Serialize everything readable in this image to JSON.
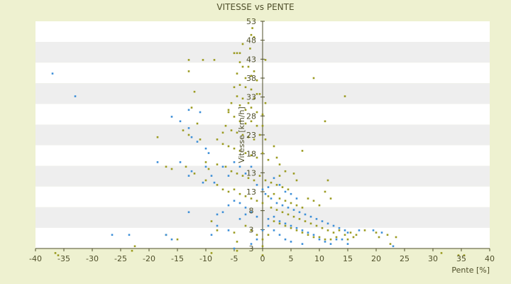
{
  "chart_data": {
    "type": "scatter",
    "title": "VITESSE vs PENTE",
    "xlabel": "Pente [%]",
    "ylabel": "Vitesse [km/h]",
    "xlim": [
      -40,
      40
    ],
    "ylim": [
      3,
      53
    ],
    "x_ticks": [
      "-40",
      "-35",
      "-30",
      "-25",
      "-20",
      "-15",
      "-10",
      "-5",
      "0",
      "5",
      "10",
      "15",
      "20",
      "25",
      "30",
      "35",
      "40"
    ],
    "y_ticks": [
      "3",
      "3",
      "8",
      "13",
      "13",
      "18",
      "23",
      "28",
      "33",
      "38",
      "43",
      "48",
      "53"
    ],
    "grid": "horizontal banded",
    "colors": {
      "background": "#eef1d0",
      "plot_band_light": "#ffffff",
      "plot_band_dark": "#eeeeee",
      "series_olive": "#9b9b20",
      "series_blue": "#3d8fd8",
      "axis": "#4f4f2a"
    },
    "series": [
      {
        "color": "#9b9b20",
        "points": [
          [
            -2,
            50
          ],
          [
            -1.8,
            51.5
          ],
          [
            -1.5,
            49.5
          ],
          [
            -2.2,
            47
          ],
          [
            -3.5,
            48
          ],
          [
            -4,
            46
          ],
          [
            -5,
            46
          ],
          [
            -4.5,
            46
          ],
          [
            -13,
            44.5
          ],
          [
            -10.5,
            44.5
          ],
          [
            -8.5,
            44.5
          ],
          [
            -13,
            42
          ],
          [
            -3.5,
            43
          ],
          [
            -4,
            44
          ],
          [
            -2.5,
            43
          ],
          [
            -1.5,
            42
          ],
          [
            0.5,
            44.5
          ],
          [
            -4.5,
            41.5
          ],
          [
            -3,
            40.5
          ],
          [
            -2,
            41
          ],
          [
            -1,
            40
          ],
          [
            -4,
            39
          ],
          [
            -5,
            38.5
          ],
          [
            -3,
            38.5
          ],
          [
            -2,
            38
          ],
          [
            -1,
            37
          ],
          [
            -4.5,
            36.5
          ],
          [
            -3.5,
            36
          ],
          [
            -2.5,
            35
          ],
          [
            -1.5,
            36
          ],
          [
            -0.5,
            37
          ],
          [
            0.5,
            35
          ],
          [
            -5.5,
            35
          ],
          [
            -4,
            34.5
          ],
          [
            -3,
            33.5
          ],
          [
            -2,
            34
          ],
          [
            -1,
            33
          ],
          [
            0,
            32.5
          ],
          [
            -6,
            33
          ],
          [
            -5,
            32
          ],
          [
            -4,
            31
          ],
          [
            -3,
            30.5
          ],
          [
            -2,
            31
          ],
          [
            -1,
            30
          ],
          [
            0,
            30
          ],
          [
            -6.5,
            30
          ],
          [
            -5.5,
            29
          ],
          [
            -4.5,
            28.5
          ],
          [
            -3.5,
            28
          ],
          [
            -2.5,
            27.5
          ],
          [
            -1.5,
            27
          ],
          [
            -0.5,
            28
          ],
          [
            0.5,
            27
          ],
          [
            -18.5,
            27.5
          ],
          [
            -13,
            28
          ],
          [
            -11,
            27
          ],
          [
            -8,
            27
          ],
          [
            -7,
            26
          ],
          [
            -6,
            25.5
          ],
          [
            -5,
            25
          ],
          [
            -4,
            24.5
          ],
          [
            -3,
            24
          ],
          [
            -2,
            23.5
          ],
          [
            -1,
            23
          ],
          [
            0,
            24
          ],
          [
            1,
            22.5
          ],
          [
            2,
            25.5
          ],
          [
            2.5,
            23
          ],
          [
            3,
            21.5
          ],
          [
            7,
            24.5
          ],
          [
            -17,
            21
          ],
          [
            -16,
            20.5
          ],
          [
            -13.5,
            21
          ],
          [
            -12,
            19.5
          ],
          [
            -10,
            22
          ],
          [
            -9.5,
            20.5
          ],
          [
            -8,
            21.5
          ],
          [
            -6.5,
            21
          ],
          [
            -5.5,
            20
          ],
          [
            -4.5,
            19.5
          ],
          [
            -3.5,
            19
          ],
          [
            -2.5,
            18.5
          ],
          [
            -1.5,
            18
          ],
          [
            -0.5,
            19
          ],
          [
            0.5,
            18
          ],
          [
            1.5,
            17.5
          ],
          [
            2.5,
            17
          ],
          [
            3.5,
            16.5
          ],
          [
            4.5,
            16
          ],
          [
            5.5,
            19.5
          ],
          [
            4,
            20
          ],
          [
            6,
            18
          ],
          [
            3,
            19
          ],
          [
            -10,
            18
          ],
          [
            -8,
            17
          ],
          [
            -7,
            16
          ],
          [
            -6,
            15.5
          ],
          [
            -5,
            16
          ],
          [
            -4,
            15
          ],
          [
            -3,
            14.5
          ],
          [
            -2,
            14
          ],
          [
            -1,
            13.5
          ],
          [
            0,
            13
          ],
          [
            1,
            14.5
          ],
          [
            2,
            15
          ],
          [
            3,
            14
          ],
          [
            4,
            13.5
          ],
          [
            5,
            13
          ],
          [
            6,
            12.5
          ],
          [
            7,
            12
          ],
          [
            8,
            14
          ],
          [
            9,
            13.5
          ],
          [
            10,
            12.5
          ],
          [
            11,
            15.5
          ],
          [
            12,
            14
          ],
          [
            11.5,
            18
          ],
          [
            1.5,
            12
          ],
          [
            2.5,
            11.5
          ],
          [
            3.5,
            11
          ],
          [
            4.5,
            10.5
          ],
          [
            5.5,
            10
          ],
          [
            6.5,
            9.5
          ],
          [
            7.5,
            9
          ],
          [
            8.5,
            8.5
          ],
          [
            9.5,
            8
          ],
          [
            10.5,
            7.5
          ],
          [
            11.5,
            7
          ],
          [
            12.5,
            6.5
          ],
          [
            13.5,
            7
          ],
          [
            14.5,
            6
          ],
          [
            15.5,
            6.5
          ],
          [
            16.5,
            6
          ],
          [
            2,
            9
          ],
          [
            3,
            8.5
          ],
          [
            4,
            8
          ],
          [
            5,
            7.5
          ],
          [
            6,
            7
          ],
          [
            7,
            6.5
          ],
          [
            8,
            6
          ],
          [
            9,
            5.5
          ],
          [
            10,
            5.5
          ],
          [
            11,
            5
          ],
          [
            12,
            5
          ],
          [
            13,
            5.5
          ],
          [
            15,
            5
          ],
          [
            16,
            5.5
          ],
          [
            18,
            7
          ],
          [
            20,
            6.5
          ],
          [
            20.5,
            5.5
          ],
          [
            22,
            6
          ],
          [
            23.5,
            5.5
          ],
          [
            22.5,
            4
          ],
          [
            -3,
            8
          ],
          [
            -2,
            7
          ],
          [
            -1,
            6
          ],
          [
            0,
            5
          ],
          [
            1,
            6
          ],
          [
            -4.5,
            4.5
          ],
          [
            -5,
            6.5
          ],
          [
            -9,
            9
          ],
          [
            -8,
            7
          ],
          [
            -15,
            5
          ],
          [
            -17,
            6
          ],
          [
            -22.5,
            3.5
          ],
          [
            -23,
            2.5
          ],
          [
            -36.5,
            2
          ],
          [
            -36,
            1.5
          ],
          [
            -9,
            2
          ],
          [
            -4.5,
            2.5
          ],
          [
            0,
            3.5
          ],
          [
            0,
            1.5
          ],
          [
            31.5,
            2
          ],
          [
            34.5,
            1.5
          ],
          [
            35.5,
            1.5
          ],
          [
            9,
            40.5
          ],
          [
            14.5,
            36.5
          ],
          [
            11,
            31
          ],
          [
            -12,
            37.5
          ],
          [
            -12.5,
            34
          ],
          [
            -14,
            29
          ],
          [
            -11.5,
            30.5
          ],
          [
            -6,
            33.5
          ],
          [
            -7,
            28.5
          ]
        ]
      },
      {
        "color": "#3d8fd8",
        "points": [
          [
            -37,
            41.5
          ],
          [
            -33,
            36.5
          ],
          [
            -16,
            32
          ],
          [
            -14.5,
            31
          ],
          [
            -13,
            33.5
          ],
          [
            -11,
            33
          ],
          [
            -13,
            29.5
          ],
          [
            -12.5,
            27.5
          ],
          [
            -11.5,
            26.5
          ],
          [
            -10,
            25
          ],
          [
            -9.5,
            24
          ],
          [
            -18.5,
            22
          ],
          [
            -14.5,
            22
          ],
          [
            -12.5,
            20
          ],
          [
            -13,
            19
          ],
          [
            -10,
            21
          ],
          [
            -9,
            19
          ],
          [
            -10.5,
            17.5
          ],
          [
            -8.5,
            17.5
          ],
          [
            -7,
            21
          ],
          [
            -6,
            19
          ],
          [
            -5,
            22
          ],
          [
            -4,
            21
          ],
          [
            -3,
            19.5
          ],
          [
            -2,
            21
          ],
          [
            -1,
            17
          ],
          [
            0,
            16
          ],
          [
            1,
            16.5
          ],
          [
            2,
            18.5
          ],
          [
            3,
            17
          ],
          [
            4,
            15.5
          ],
          [
            5,
            15
          ],
          [
            6,
            14
          ],
          [
            0.5,
            15
          ],
          [
            1.5,
            14
          ],
          [
            2.5,
            13
          ],
          [
            3.5,
            12.5
          ],
          [
            4.5,
            12
          ],
          [
            5.5,
            11.5
          ],
          [
            6.5,
            11
          ],
          [
            7.5,
            10.5
          ],
          [
            8.5,
            10
          ],
          [
            9.5,
            9.5
          ],
          [
            10.5,
            9
          ],
          [
            11.5,
            8.5
          ],
          [
            12.5,
            8
          ],
          [
            13.5,
            7.5
          ],
          [
            14.5,
            7
          ],
          [
            15,
            6.5
          ],
          [
            17,
            7
          ],
          [
            19.5,
            7
          ],
          [
            21,
            6.5
          ],
          [
            23,
            3.5
          ],
          [
            1,
            9.5
          ],
          [
            2,
            10
          ],
          [
            3,
            9
          ],
          [
            4,
            8.5
          ],
          [
            5,
            8
          ],
          [
            6,
            7.5
          ],
          [
            7,
            7
          ],
          [
            8,
            6.5
          ],
          [
            9,
            6
          ],
          [
            10,
            5
          ],
          [
            11,
            4.5
          ],
          [
            12,
            4
          ],
          [
            13,
            5
          ],
          [
            14,
            5
          ],
          [
            15,
            4
          ],
          [
            4,
            5
          ],
          [
            5,
            4.5
          ],
          [
            7,
            4
          ],
          [
            -1,
            10
          ],
          [
            -2,
            11
          ],
          [
            -3,
            12
          ],
          [
            -4,
            13
          ],
          [
            -5,
            13.5
          ],
          [
            -6,
            12.5
          ],
          [
            -7,
            11
          ],
          [
            -8,
            10.5
          ],
          [
            -13,
            11
          ],
          [
            -9,
            6
          ],
          [
            -8,
            8
          ],
          [
            -6,
            7
          ],
          [
            -4,
            9.5
          ],
          [
            -3,
            10.5
          ],
          [
            -26.5,
            6
          ],
          [
            -23.5,
            6
          ],
          [
            -17,
            6
          ],
          [
            -16,
            5
          ],
          [
            -5,
            3
          ],
          [
            -2,
            4
          ],
          [
            -1,
            5
          ],
          [
            0,
            7
          ],
          [
            1,
            8
          ],
          [
            2,
            7
          ],
          [
            3,
            6
          ]
        ]
      }
    ]
  }
}
